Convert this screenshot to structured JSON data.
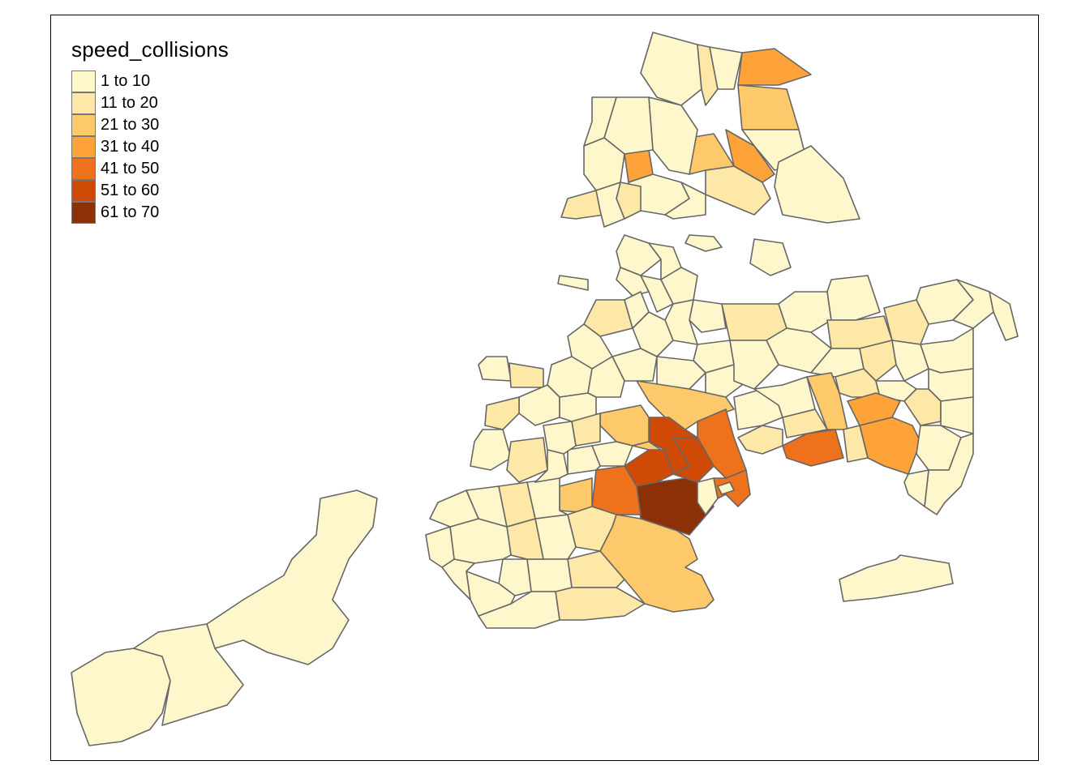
{
  "legend": {
    "title": "speed_collisions",
    "classes": [
      {
        "label": "1 to 10",
        "color": "#FFF7CC"
      },
      {
        "label": "11 to 20",
        "color": "#FEE8A8"
      },
      {
        "label": "21 to 30",
        "color": "#FEC96A"
      },
      {
        "label": "31 to 40",
        "color": "#FEA33A"
      },
      {
        "label": "41 to 50",
        "color": "#EE711C"
      },
      {
        "label": "51 to 60",
        "color": "#CF4A06"
      },
      {
        "label": "61 to 70",
        "color": "#8C3008"
      }
    ]
  },
  "map": {
    "border_color": "#666666"
  }
}
